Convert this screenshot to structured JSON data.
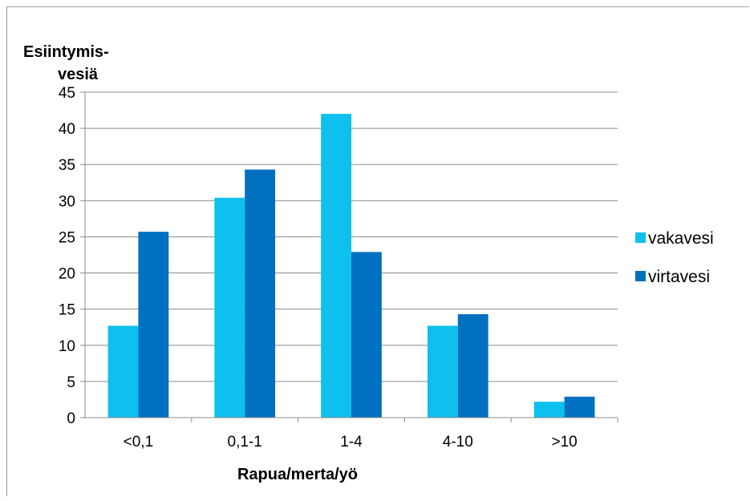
{
  "chart_data": {
    "type": "bar",
    "title": "",
    "ylabel": [
      "Esiintymis-",
      "vesiä"
    ],
    "xlabel": "Rapua/merta/yö",
    "categories": [
      "<0,1",
      "0,1-1",
      "1-4",
      "4-10",
      ">10"
    ],
    "series": [
      {
        "name": "vakavesi",
        "color": "#0DC0EE",
        "values": [
          12.7,
          30.4,
          42,
          12.7,
          2.2
        ]
      },
      {
        "name": "virtavesi",
        "color": "#0070C0",
        "values": [
          25.7,
          34.3,
          22.9,
          14.3,
          2.9
        ]
      }
    ],
    "ylim": [
      0,
      45
    ],
    "yticks": [
      0,
      5,
      10,
      15,
      20,
      25,
      30,
      35,
      40,
      45
    ],
    "grid": true,
    "legend": "right"
  }
}
